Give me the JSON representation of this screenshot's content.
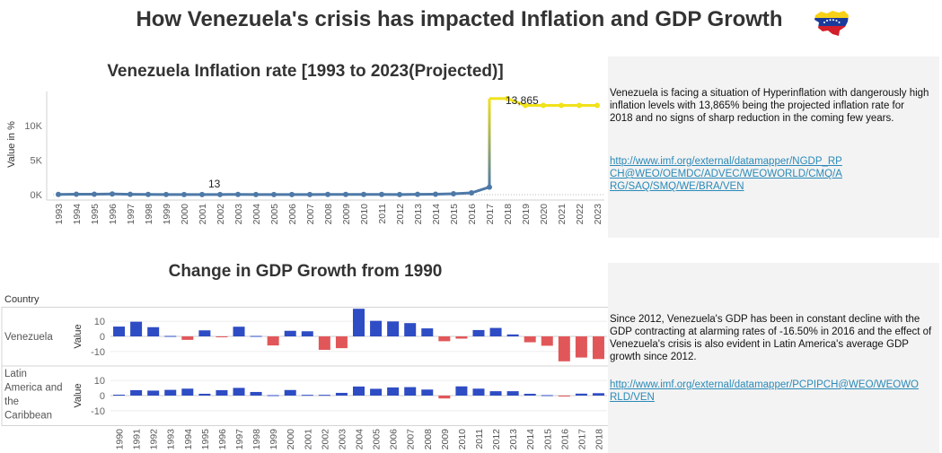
{
  "title": "How Venezuela's crisis has impacted Inflation and GDP Growth",
  "flag_icon": "venezuela-map-flag-icon",
  "colors": {
    "inflation_line": "#4e79a7",
    "projected_line": "#f1e21b",
    "positive_bar": "#2e4cc4",
    "negative_bar": "#e15759"
  },
  "inflation_panel": {
    "text": "Venezuela is facing a situation of Hyperinflation with dangerously high inflation levels with 13,865% being the projected inflation rate for 2018 and no signs of sharp reduction in the coming few years.",
    "link": "http://www.imf.org/external/datamapper/NGDP_RPCH@WEO/OEMDC/ADVEC/WEOWORLD/CMQ/ARG/SAQ/SMQ/WE/BRA/VEN"
  },
  "gdp_panel": {
    "text": "Since 2012, Venezuela's GDP has been in constant decline with the GDP contracting at alarming rates of -16.50% in 2016 and the effect of Venezuela's crisis is also evident in Latin America's average GDP growth since 2012.",
    "link": "http://www.imf.org/external/datamapper/PCPIPCH@WEO/WEOWORLD/VEN"
  },
  "chart_data": [
    {
      "type": "line",
      "title": "Venezuela Inflation rate [1993 to 2023(Projected)]",
      "xlabel": "",
      "ylabel": "Value in %",
      "ylim": [
        0,
        14500
      ],
      "yticks": [
        0,
        5000,
        10000
      ],
      "ytick_labels": [
        "0K",
        "5K",
        "10K"
      ],
      "x": [
        "1993",
        "1994",
        "1995",
        "1996",
        "1997",
        "1998",
        "1999",
        "2000",
        "2001",
        "2002",
        "2003",
        "2004",
        "2005",
        "2006",
        "2007",
        "2008",
        "2009",
        "2010",
        "2011",
        "2012",
        "2013",
        "2014",
        "2015",
        "2016",
        "2017",
        "2018",
        "2019",
        "2020",
        "2021",
        "2022",
        "2023"
      ],
      "series": [
        {
          "values": [
            38,
            61,
            60,
            100,
            50,
            36,
            24,
            16,
            13,
            22,
            31,
            22,
            16,
            14,
            19,
            31,
            27,
            28,
            26,
            21,
            41,
            62,
            122,
            255,
            1087,
            13865,
            12875,
            12875,
            12875,
            12875,
            12875
          ]
        }
      ],
      "projected_from": "2018",
      "annotations": [
        {
          "x": "2001",
          "text": "13"
        },
        {
          "x": "2018",
          "text": "13,865"
        }
      ]
    },
    {
      "type": "bar",
      "title": "Change in GDP Growth from 1990",
      "row_header": "Country",
      "ylabel": "Value",
      "yticks": [
        10,
        0,
        -10
      ],
      "ytick_labels": [
        "10",
        "0",
        "-10"
      ],
      "ylim": [
        -19,
        19
      ],
      "categories": [
        "1990",
        "1991",
        "1992",
        "1993",
        "1994",
        "1995",
        "1996",
        "1997",
        "1998",
        "1999",
        "2000",
        "2001",
        "2002",
        "2003",
        "2004",
        "2005",
        "2006",
        "2007",
        "2008",
        "2009",
        "2010",
        "2011",
        "2012",
        "2013",
        "2014",
        "2015",
        "2016",
        "2017",
        "2018"
      ],
      "series": [
        {
          "name": "Venezuela",
          "values": [
            6.5,
            9.7,
            6.1,
            0.3,
            -2.3,
            4.0,
            -0.2,
            6.4,
            0.3,
            -6.0,
            3.7,
            3.4,
            -8.9,
            -7.8,
            18.3,
            10.3,
            9.9,
            8.8,
            5.3,
            -3.2,
            -1.5,
            4.2,
            5.6,
            1.3,
            -3.9,
            -6.2,
            -16.5,
            -14.0,
            -15.0
          ]
        },
        {
          "name": "Latin America and the Caribbean",
          "values": [
            0.6,
            3.6,
            3.3,
            3.8,
            4.6,
            1.2,
            3.6,
            5.1,
            2.4,
            0.3,
            3.7,
            0.5,
            0.5,
            1.8,
            6.0,
            4.5,
            5.4,
            5.6,
            4.0,
            -1.9,
            6.1,
            4.6,
            2.9,
            2.9,
            1.2,
            0.3,
            -0.6,
            1.3,
            1.6
          ]
        }
      ]
    }
  ]
}
